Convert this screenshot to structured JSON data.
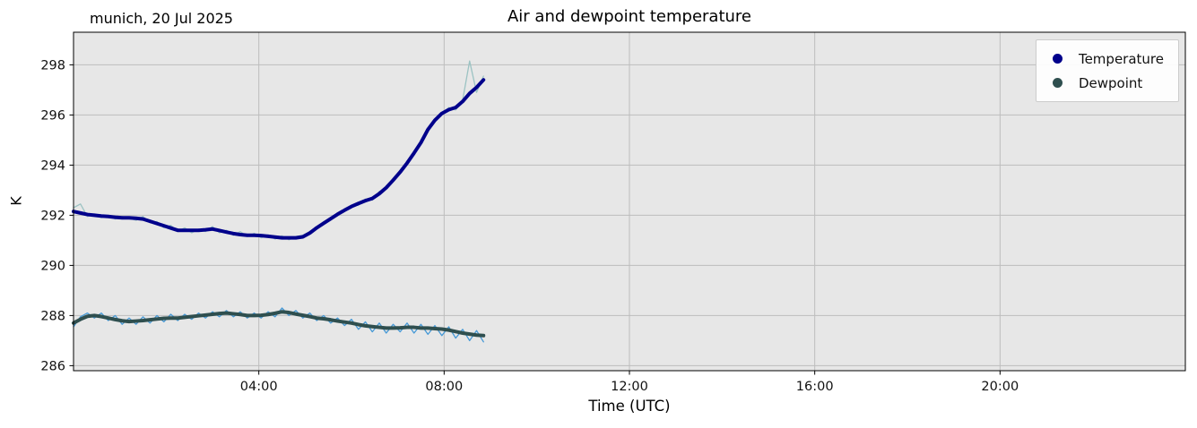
{
  "header": {
    "corner_label": "munich, 20 Jul 2025"
  },
  "chart_data": {
    "type": "line",
    "title": "Air and dewpoint temperature",
    "xlabel": "Time (UTC)",
    "ylabel": "K",
    "xlim": [
      0,
      24
    ],
    "ylim": [
      285.8,
      299.3
    ],
    "grid": true,
    "plot_bg_color": "#e7e7e7",
    "grid_color": "#bdbdbd",
    "x_ticks": [
      4,
      8,
      12,
      16,
      20
    ],
    "x_tick_labels": [
      "04:00",
      "08:00",
      "12:00",
      "16:00",
      "20:00"
    ],
    "y_ticks": [
      286,
      288,
      290,
      292,
      294,
      296,
      298
    ],
    "y_tick_labels": [
      "286",
      "288",
      "290",
      "292",
      "294",
      "296",
      "298"
    ],
    "legend": {
      "position": "upper right",
      "entries": [
        {
          "label": "Temperature",
          "color": "#00008b"
        },
        {
          "label": "Dewpoint",
          "color": "#2f4f4f"
        }
      ]
    },
    "x": [
      0,
      0.15,
      0.3,
      0.45,
      0.6,
      0.75,
      0.9,
      1.05,
      1.2,
      1.35,
      1.5,
      1.65,
      1.8,
      1.95,
      2.1,
      2.25,
      2.4,
      2.55,
      2.7,
      2.85,
      3.0,
      3.15,
      3.3,
      3.45,
      3.6,
      3.75,
      3.9,
      4.05,
      4.2,
      4.35,
      4.5,
      4.65,
      4.8,
      4.95,
      5.1,
      5.25,
      5.4,
      5.55,
      5.7,
      5.85,
      6.0,
      6.15,
      6.3,
      6.45,
      6.6,
      6.75,
      6.9,
      7.05,
      7.2,
      7.35,
      7.5,
      7.65,
      7.8,
      7.95,
      8.1,
      8.25,
      8.4,
      8.55,
      8.7,
      8.85
    ],
    "series": [
      {
        "name": "temperature_raw",
        "color": "#9cc3c3",
        "width": 1.3,
        "y": [
          292.3,
          292.45,
          291.95,
          292.05,
          291.9,
          292.0,
          291.85,
          291.95,
          291.88,
          291.8,
          291.95,
          291.7,
          291.75,
          291.5,
          291.6,
          291.35,
          291.5,
          291.3,
          291.45,
          291.35,
          291.55,
          291.3,
          291.4,
          291.2,
          291.35,
          291.15,
          291.28,
          291.1,
          291.22,
          291.05,
          291.18,
          291.02,
          291.15,
          291.2,
          291.35,
          291.45,
          291.75,
          291.8,
          292.1,
          292.15,
          292.4,
          292.4,
          292.65,
          292.6,
          292.95,
          293.05,
          293.45,
          293.65,
          294.15,
          294.4,
          294.95,
          295.35,
          295.85,
          296.0,
          296.3,
          296.2,
          296.6,
          298.15,
          296.9,
          297.55
        ]
      },
      {
        "name": "dewpoint_raw",
        "color": "#4699d6",
        "width": 1.3,
        "y": [
          287.55,
          287.95,
          288.1,
          287.9,
          288.1,
          287.8,
          288.0,
          287.65,
          287.9,
          287.65,
          287.95,
          287.7,
          288.0,
          287.75,
          288.05,
          287.8,
          288.05,
          287.85,
          288.1,
          287.9,
          288.15,
          287.95,
          288.2,
          287.95,
          288.15,
          287.9,
          288.1,
          287.9,
          288.15,
          287.95,
          288.3,
          288.0,
          288.2,
          287.9,
          288.1,
          287.8,
          288.0,
          287.7,
          287.9,
          287.6,
          287.85,
          287.45,
          287.75,
          287.35,
          287.7,
          287.3,
          287.65,
          287.35,
          287.7,
          287.3,
          287.65,
          287.25,
          287.6,
          287.2,
          287.55,
          287.1,
          287.45,
          287.0,
          287.4,
          286.95
        ]
      },
      {
        "name": "temperature_smoothed",
        "color": "#00008b",
        "width": 4,
        "y": [
          292.15,
          292.09,
          292.03,
          292.0,
          291.97,
          291.95,
          291.92,
          291.9,
          291.9,
          291.88,
          291.85,
          291.76,
          291.67,
          291.58,
          291.49,
          291.4,
          291.4,
          291.4,
          291.4,
          291.42,
          291.45,
          291.39,
          291.33,
          291.27,
          291.23,
          291.2,
          291.2,
          291.19,
          291.16,
          291.13,
          291.1,
          291.1,
          291.1,
          291.14,
          291.29,
          291.5,
          291.68,
          291.86,
          292.04,
          292.2,
          292.35,
          292.47,
          292.58,
          292.67,
          292.86,
          293.1,
          293.4,
          293.72,
          294.08,
          294.48,
          294.9,
          295.42,
          295.79,
          296.06,
          296.21,
          296.3,
          296.54,
          296.86,
          297.1,
          297.4
        ]
      },
      {
        "name": "dewpoint_smoothed",
        "color": "#2f4f4f",
        "width": 4,
        "y": [
          287.7,
          287.85,
          287.97,
          288.0,
          287.96,
          287.9,
          287.84,
          287.79,
          287.76,
          287.78,
          287.8,
          287.83,
          287.86,
          287.89,
          287.9,
          287.9,
          287.93,
          287.96,
          287.99,
          288.02,
          288.05,
          288.08,
          288.1,
          288.07,
          288.04,
          288.0,
          288.0,
          288.01,
          288.04,
          288.09,
          288.15,
          288.12,
          288.06,
          288.01,
          287.96,
          287.9,
          287.87,
          287.83,
          287.78,
          287.74,
          287.7,
          287.64,
          287.59,
          287.56,
          287.53,
          287.5,
          287.5,
          287.51,
          287.53,
          287.53,
          287.5,
          287.5,
          287.48,
          287.46,
          287.42,
          287.36,
          287.3,
          287.26,
          287.22,
          287.2
        ]
      }
    ]
  }
}
